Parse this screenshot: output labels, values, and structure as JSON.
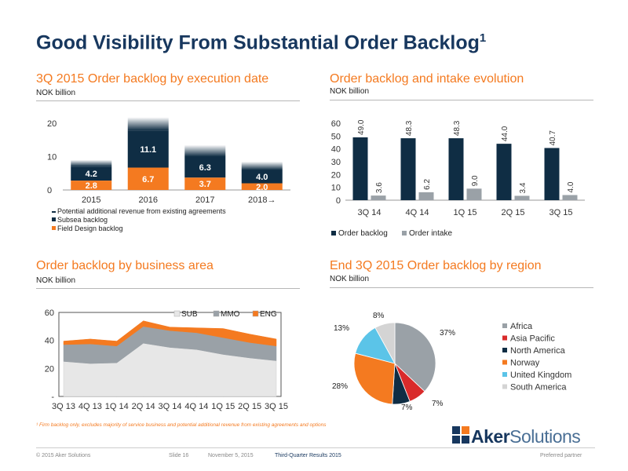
{
  "title": "Good Visibility From Substantial Order Backlog",
  "title_sup": "1",
  "panels": {
    "p1": {
      "title": "3Q 2015 Order backlog by execution date",
      "subtitle": "NOK billion"
    },
    "p2": {
      "title": "Order backlog and intake evolution",
      "subtitle": "NOK billion"
    },
    "p3": {
      "title": "Order backlog by business area",
      "subtitle": "NOK billion"
    },
    "p4": {
      "title": "End 3Q 2015 Order backlog by region",
      "subtitle": "NOK billion"
    }
  },
  "footnote": "¹ Firm backlog only, excludes majority of service business and potential additional revenue from existing agreements and options",
  "footer": {
    "copyright": "© 2015 Aker Solutions",
    "slide": "Slide 16",
    "date": "November 5, 2015",
    "results": "Third-Quarter Results 2015",
    "tag": "Preferred partner"
  },
  "logo": {
    "bold": "Aker",
    "normal": "Solutions"
  },
  "colors": {
    "navy": "#0f2d44",
    "orange": "#f47a20",
    "grey": "#9aa1a7",
    "title": "#17375e"
  },
  "chart_data": [
    {
      "type": "bar",
      "title": "3Q 2015 Order backlog by execution date",
      "categories": [
        "2015",
        "2016",
        "2017",
        "2018→"
      ],
      "series": [
        {
          "name": "Field Design backlog",
          "values": [
            2.8,
            6.7,
            3.7,
            2.0
          ],
          "color": "#f47a20"
        },
        {
          "name": "Subsea backlog",
          "values": [
            4.2,
            11.1,
            6.3,
            4.0
          ],
          "color": "#0f2d44"
        },
        {
          "name": "Potential additional revenue from existing agreements",
          "values": [
            2.0,
            4.0,
            3.5,
            2.5
          ],
          "color": "#0f2d44"
        }
      ],
      "ylim": [
        0,
        20
      ],
      "yticks": [
        0,
        10,
        20
      ],
      "stacked": true,
      "legend": "bottom"
    },
    {
      "type": "bar",
      "title": "Order backlog and intake evolution",
      "categories": [
        "3Q 14",
        "4Q 14",
        "1Q 15",
        "2Q 15",
        "3Q 15"
      ],
      "series": [
        {
          "name": "Order backlog",
          "values": [
            49.0,
            48.3,
            48.3,
            44.0,
            40.7
          ],
          "labels": [
            "49.0",
            "48.3",
            "48.3",
            "44.0",
            "40.7"
          ],
          "color": "#0f2d44"
        },
        {
          "name": "Order intake",
          "values": [
            3.6,
            6.2,
            9.0,
            3.4,
            4.0
          ],
          "labels": [
            "3.6",
            "6.2",
            "9.0",
            "3.4",
            "4.0"
          ],
          "color": "#9aa1a7"
        }
      ],
      "ylim": [
        0,
        60
      ],
      "yticks": [
        0,
        10,
        20,
        30,
        40,
        50,
        60
      ],
      "legend": "bottom"
    },
    {
      "type": "area",
      "title": "Order backlog by business area",
      "categories": [
        "3Q 13",
        "4Q 13",
        "1Q 14",
        "2Q 14",
        "3Q 14",
        "4Q 14",
        "1Q 15",
        "2Q 15",
        "3Q 15"
      ],
      "series": [
        {
          "name": "SUB",
          "values": [
            25,
            23.5,
            24,
            38,
            35,
            33.5,
            30,
            27.5,
            25.5
          ],
          "color": "#e7e7e7"
        },
        {
          "name": "MMO",
          "values": [
            12,
            14,
            12,
            12,
            12,
            12,
            12,
            11,
            10.5
          ],
          "color": "#9aa1a7"
        },
        {
          "name": "ENG",
          "values": [
            2.5,
            3.5,
            3.5,
            4,
            2.5,
            3.5,
            6.5,
            6,
            5
          ],
          "color": "#f47a20"
        }
      ],
      "stacked": true,
      "ylim": [
        0,
        60
      ],
      "yticks": [
        "-",
        "20",
        "40",
        "60"
      ],
      "legend": "top-right"
    },
    {
      "type": "pie",
      "title": "End 3Q 2015 Order backlog by region",
      "categories": [
        "Africa",
        "Asia Pacific",
        "North America",
        "Norway",
        "United Kingdom",
        "South America"
      ],
      "values": [
        37,
        7,
        7,
        28,
        13,
        8
      ],
      "labels": [
        "37%",
        "7%",
        "7%",
        "28%",
        "13%",
        "8%"
      ],
      "colors": [
        "#9aa1a7",
        "#d92b2b",
        "#0f2d44",
        "#f47a20",
        "#5bc4e8",
        "#d4d4d4"
      ],
      "legend": "right"
    }
  ]
}
